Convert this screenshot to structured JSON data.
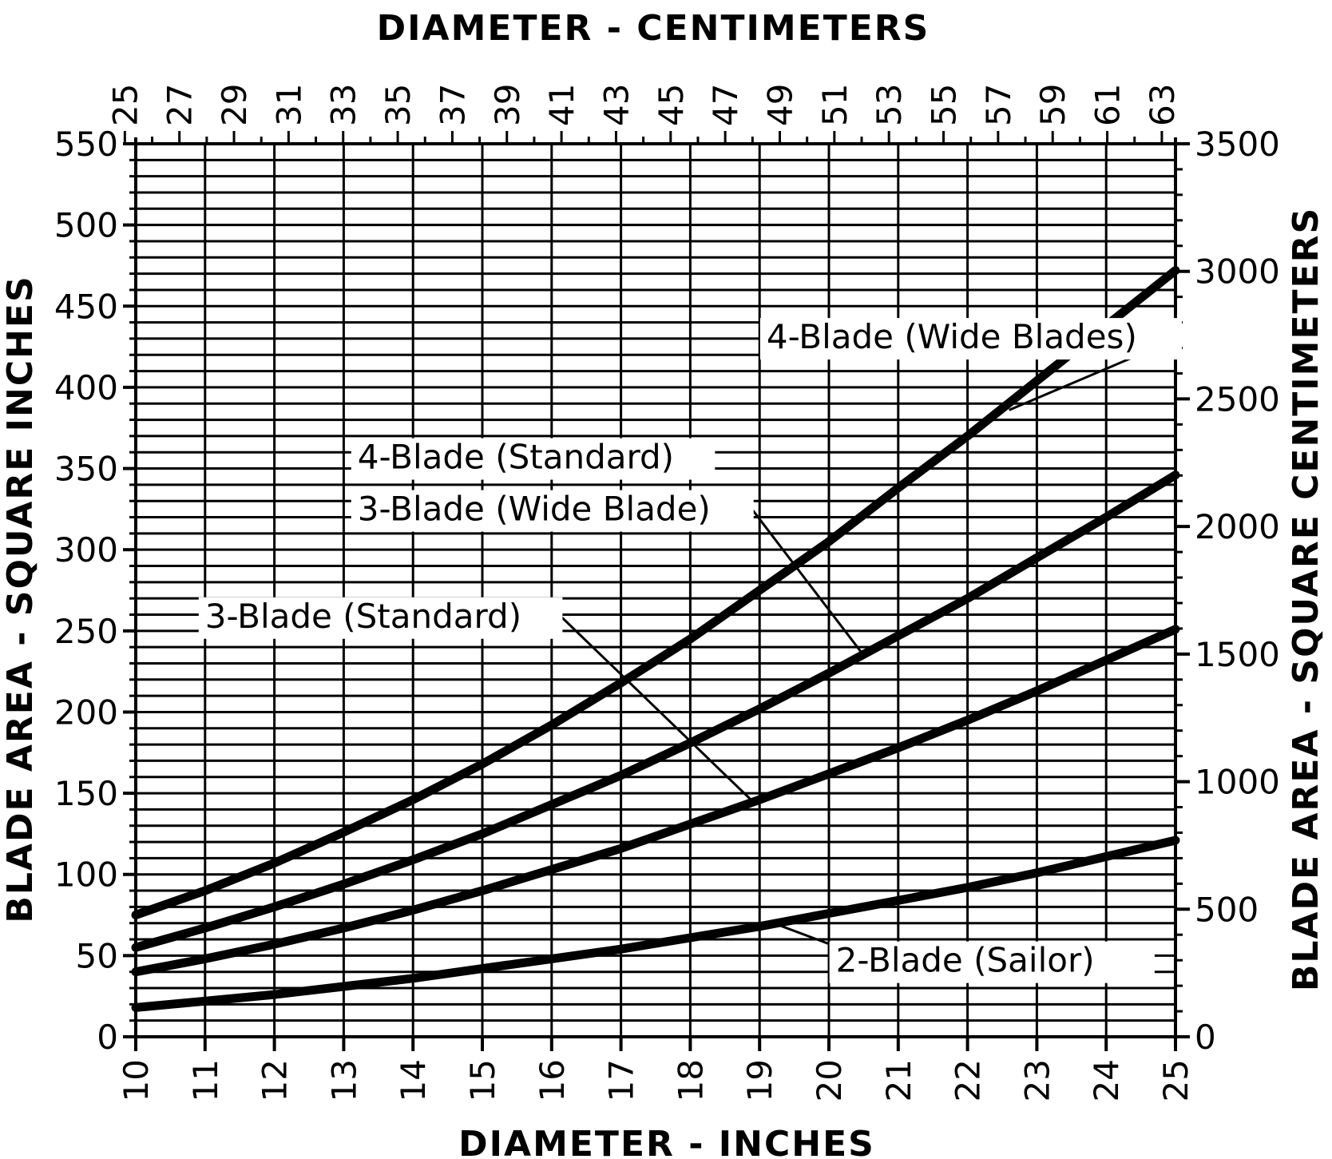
{
  "chart_data": {
    "type": "line",
    "title": "",
    "x_top_label": "DIAMETER - CENTIMETERS",
    "x_bottom_label": "DIAMETER - INCHES",
    "y_left_label": "BLADE AREA - SQUARE INCHES",
    "y_right_label": "BLADE AREA - SQUARE CENTIMETERS",
    "xlim": [
      10,
      25
    ],
    "ylim": [
      0,
      550
    ],
    "y2lim": [
      0,
      3500
    ],
    "x_ticks": [
      10,
      11,
      12,
      13,
      14,
      15,
      16,
      17,
      18,
      19,
      20,
      21,
      22,
      23,
      24,
      25
    ],
    "x_top_ticks": [
      25,
      27,
      29,
      31,
      33,
      35,
      37,
      39,
      41,
      43,
      45,
      47,
      49,
      51,
      53,
      55,
      57,
      59,
      61,
      63
    ],
    "y_ticks": [
      0,
      50,
      100,
      150,
      200,
      250,
      300,
      350,
      400,
      450,
      500,
      550
    ],
    "y2_ticks": [
      0,
      500,
      1000,
      1500,
      2000,
      2500,
      3000,
      3500
    ],
    "grid": true,
    "series": [
      {
        "name": "4-Blade (Wide Blades)",
        "x": [
          10,
          11,
          12,
          13,
          14,
          15,
          16,
          17,
          18,
          19,
          20,
          21,
          22,
          23,
          24,
          25
        ],
        "values": [
          75,
          90,
          107,
          126,
          146,
          168,
          192,
          218,
          245,
          275,
          305,
          338,
          370,
          404,
          438,
          472
        ]
      },
      {
        "name": "4-Blade (Standard)",
        "x": [
          10,
          11,
          12,
          13,
          14,
          15,
          16,
          17,
          18,
          19,
          20,
          21,
          22,
          23,
          24,
          25
        ],
        "values": [
          55,
          67,
          80,
          94,
          109,
          125,
          143,
          161,
          181,
          202,
          224,
          247,
          270,
          295,
          320,
          346
        ]
      },
      {
        "name": "3-Blade (Wide Blade)",
        "x": [
          10,
          11,
          12,
          13,
          14,
          15,
          16,
          17,
          18,
          19,
          20,
          21,
          22,
          23,
          24,
          25
        ],
        "values": [
          40,
          48,
          57,
          67,
          78,
          90,
          103,
          116,
          131,
          146,
          162,
          178,
          195,
          213,
          232,
          251
        ]
      },
      {
        "name": "2-Blade (Sailor)",
        "x": [
          10,
          11,
          12,
          13,
          14,
          15,
          16,
          17,
          18,
          19,
          20,
          21,
          22,
          23,
          24,
          25
        ],
        "values": [
          18,
          22,
          26,
          31,
          36,
          42,
          48,
          54,
          61,
          68,
          76,
          84,
          92,
          101,
          111,
          121
        ]
      }
    ],
    "annotations": [
      {
        "text": "4-Blade (Wide Blades)",
        "x": 19.1,
        "y": 424,
        "points_to_x": 22.6,
        "points_to_y": 386
      },
      {
        "text": "4-Blade (Standard)",
        "x": 13.2,
        "y": 350,
        "points_to_x": null,
        "points_to_y": null
      },
      {
        "text": "3-Blade (Wide Blade)",
        "x": 13.2,
        "y": 318,
        "points_to_x": 20.5,
        "points_to_y": 235
      },
      {
        "text": "3-Blade (Standard)",
        "x": 11.0,
        "y": 252,
        "points_to_x": 18.9,
        "points_to_y": 145
      },
      {
        "text": "2-Blade (Sailor)",
        "x": 20.1,
        "y": 40,
        "points_to_x": 19.2,
        "points_to_y": 70
      }
    ]
  }
}
